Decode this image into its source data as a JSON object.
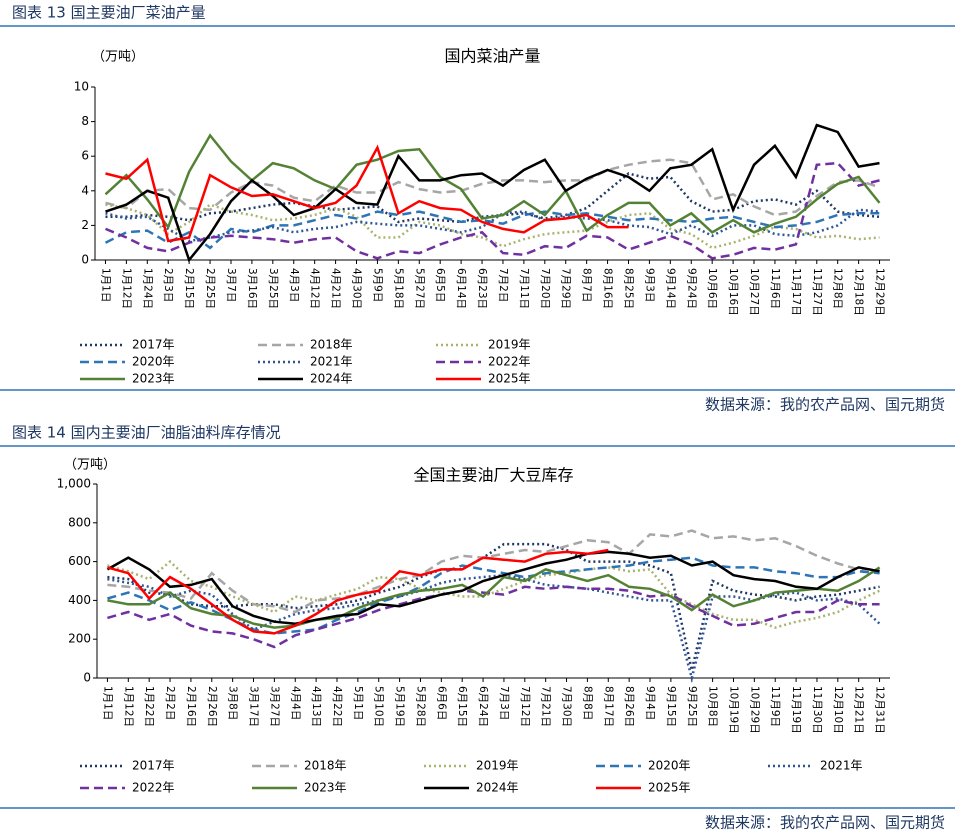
{
  "chart_data": [
    {
      "type": "line",
      "caption": "图表 13 国主要油厂菜油产量",
      "title": "国内菜油产量",
      "unit": "（万吨）",
      "source": "数据来源：我的农产品网、国元期货",
      "categories": [
        "1月1日",
        "1月12日",
        "1月24日",
        "2月3日",
        "2月15日",
        "2月25日",
        "3月7日",
        "3月16日",
        "3月25日",
        "4月3日",
        "4月12日",
        "4月21日",
        "4月30日",
        "5月9日",
        "5月18日",
        "5月27日",
        "6月5日",
        "6月14日",
        "6月23日",
        "7月2日",
        "7月11日",
        "7月20日",
        "7月29日",
        "8月7日",
        "8月16日",
        "8月25日",
        "9月3日",
        "9月14日",
        "9月24日",
        "10月6日",
        "10月16日",
        "10月27日",
        "11月6日",
        "11月17日",
        "11月27日",
        "12月8日",
        "12月18日",
        "12月29日"
      ],
      "ylim": [
        0,
        10
      ],
      "yticks": [
        0,
        2,
        4,
        6,
        8,
        10
      ],
      "series": [
        {
          "name": "2017年",
          "color": "#1f3864",
          "style": "dotted",
          "values": [
            2.5,
            2.5,
            2.6,
            2.5,
            2.3,
            2.7,
            2.8,
            3.0,
            3.2,
            3.3,
            3.1,
            2.9,
            3.0,
            3.1,
            2.2,
            2.4,
            2.3,
            2.2,
            2.5,
            2.6,
            2.7,
            2.4,
            2.6,
            3.0,
            4.0,
            5.0,
            4.7,
            4.8,
            3.4,
            2.8,
            2.9,
            3.4,
            3.5,
            3.2,
            4.0,
            2.8,
            2.6,
            2.5
          ]
        },
        {
          "name": "2018年",
          "color": "#a6a6a6",
          "style": "dashed",
          "values": [
            3.3,
            3.0,
            4.0,
            4.1,
            3.0,
            2.9,
            3.9,
            4.5,
            4.3,
            3.6,
            3.4,
            4.3,
            3.9,
            3.9,
            4.5,
            4.1,
            3.9,
            4.0,
            4.4,
            4.6,
            4.6,
            4.5,
            4.6,
            4.6,
            5.2,
            5.5,
            5.7,
            5.8,
            5.6,
            3.5,
            3.8,
            3.1,
            2.6,
            2.8,
            3.7,
            4.5,
            4.6,
            4.2
          ]
        },
        {
          "name": "2019年",
          "color": "#a9b36e",
          "style": "dotted",
          "values": [
            3.2,
            3.0,
            2.6,
            1.5,
            2.2,
            3.2,
            2.8,
            2.6,
            2.3,
            2.4,
            2.6,
            3.0,
            2.5,
            1.3,
            1.3,
            2.2,
            2.0,
            1.5,
            1.3,
            0.8,
            1.2,
            1.5,
            1.6,
            1.7,
            2.2,
            2.6,
            2.7,
            1.8,
            1.5,
            0.7,
            1.0,
            1.4,
            1.9,
            1.8,
            1.3,
            1.4,
            1.2,
            1.3
          ]
        },
        {
          "name": "2020年",
          "color": "#2e75b6",
          "style": "dashed",
          "values": [
            1.0,
            1.6,
            1.7,
            1.0,
            1.6,
            0.7,
            1.8,
            1.6,
            2.0,
            2.0,
            2.3,
            2.6,
            2.4,
            2.8,
            2.6,
            2.8,
            2.5,
            2.2,
            2.3,
            2.1,
            2.6,
            2.8,
            2.6,
            2.7,
            2.5,
            2.3,
            2.4,
            2.3,
            2.2,
            2.4,
            2.5,
            2.2,
            1.9,
            2.0,
            2.2,
            2.6,
            2.7,
            2.7
          ]
        },
        {
          "name": "2021年",
          "color": "#2f5597",
          "style": "dotted",
          "values": [
            2.7,
            2.4,
            2.5,
            1.8,
            1.1,
            1.3,
            1.6,
            1.7,
            1.9,
            1.6,
            1.8,
            1.9,
            2.2,
            2.1,
            2.0,
            2.0,
            1.8,
            1.6,
            1.9,
            2.7,
            2.8,
            2.3,
            2.5,
            2.4,
            2.3,
            2.0,
            1.9,
            1.5,
            2.0,
            1.4,
            2.0,
            2.0,
            1.5,
            1.4,
            1.6,
            2.0,
            2.9,
            2.8
          ]
        },
        {
          "name": "2022年",
          "color": "#7030a0",
          "style": "dashed",
          "values": [
            1.8,
            1.3,
            0.7,
            0.5,
            1.0,
            1.3,
            1.4,
            1.3,
            1.2,
            1.0,
            1.2,
            1.3,
            0.5,
            0.1,
            0.5,
            0.4,
            0.9,
            1.3,
            1.6,
            0.4,
            0.3,
            0.8,
            0.7,
            1.4,
            1.3,
            0.6,
            1.0,
            1.4,
            0.9,
            0.1,
            0.3,
            0.7,
            0.6,
            0.9,
            5.5,
            5.6,
            4.3,
            4.6
          ]
        },
        {
          "name": "2023年",
          "color": "#548235",
          "style": "solid",
          "values": [
            3.8,
            4.9,
            3.5,
            1.9,
            5.1,
            7.2,
            5.7,
            4.6,
            5.6,
            5.3,
            4.6,
            4.1,
            5.5,
            5.8,
            6.3,
            6.4,
            4.8,
            4.1,
            2.4,
            2.6,
            3.4,
            2.6,
            4.0,
            1.7,
            2.6,
            3.3,
            3.3,
            2.0,
            2.7,
            1.6,
            2.3,
            1.6,
            2.1,
            2.5,
            3.5,
            4.4,
            4.8,
            3.3
          ]
        },
        {
          "name": "2024年",
          "color": "#000000",
          "style": "solid",
          "values": [
            2.8,
            3.2,
            4.0,
            3.6,
            0.0,
            1.5,
            3.4,
            4.6,
            3.7,
            2.6,
            3.0,
            4.1,
            3.3,
            3.2,
            6.0,
            4.6,
            4.6,
            4.9,
            5.0,
            4.3,
            5.2,
            5.8,
            4.0,
            4.7,
            5.2,
            4.8,
            4.0,
            5.3,
            5.5,
            6.4,
            2.9,
            5.5,
            6.6,
            4.8,
            7.8,
            7.4,
            5.4,
            5.6
          ]
        },
        {
          "name": "2025年",
          "color": "#ff0000",
          "style": "solid",
          "values": [
            5.0,
            4.7,
            5.8,
            1.1,
            1.3,
            4.9,
            4.2,
            3.7,
            3.8,
            3.4,
            3.0,
            3.3,
            4.3,
            6.5,
            2.7,
            3.4,
            3.0,
            2.9,
            2.2,
            1.8,
            1.6,
            2.3,
            2.4,
            2.6,
            1.9,
            1.9,
            null,
            null,
            null,
            null,
            null,
            null,
            null,
            null,
            null,
            null,
            null,
            null
          ]
        }
      ]
    },
    {
      "type": "line",
      "caption": "图表 14 国内主要油厂油脂油料库存情况",
      "title": "全国主要油厂大豆库存",
      "unit": "（万吨）",
      "source": "数据来源：我的农产品网、国元期货",
      "categories": [
        "1月1日",
        "1月12日",
        "1月22日",
        "2月2日",
        "2月16日",
        "2月26日",
        "3月8日",
        "3月17日",
        "3月27日",
        "4月4日",
        "4月13日",
        "4月22日",
        "5月1日",
        "5月10日",
        "5月19日",
        "5月28日",
        "6月6日",
        "6月15日",
        "6月24日",
        "7月3日",
        "7月12日",
        "7月21日",
        "7月30日",
        "8月8日",
        "8月17日",
        "8月26日",
        "9月4日",
        "9月15日",
        "9月25日",
        "10月8日",
        "10月19日",
        "10月29日",
        "11月9日",
        "11月19日",
        "11月30日",
        "12月10日",
        "12月21日",
        "12月31日"
      ],
      "ylim": [
        0,
        1000
      ],
      "yticks": [
        0,
        200,
        400,
        600,
        800,
        {
          "value": 1000,
          "label": "1,000"
        }
      ],
      "series": [
        {
          "name": "2017年",
          "color": "#1f3864",
          "style": "dotted",
          "values": [
            520,
            510,
            440,
            430,
            380,
            370,
            370,
            380,
            380,
            360,
            370,
            380,
            400,
            440,
            470,
            520,
            560,
            560,
            620,
            690,
            690,
            690,
            660,
            600,
            600,
            600,
            580,
            540,
            40,
            500,
            450,
            430,
            420,
            400,
            420,
            430,
            450,
            470
          ]
        },
        {
          "name": "2018年",
          "color": "#a6a6a6",
          "style": "dashed",
          "values": [
            480,
            470,
            450,
            440,
            410,
            540,
            450,
            380,
            370,
            340,
            400,
            410,
            430,
            470,
            510,
            530,
            600,
            630,
            620,
            640,
            660,
            650,
            680,
            710,
            700,
            640,
            740,
            730,
            760,
            720,
            730,
            710,
            720,
            680,
            630,
            590,
            560,
            560
          ]
        },
        {
          "name": "2019年",
          "color": "#a9b36e",
          "style": "dotted",
          "values": [
            580,
            550,
            510,
            600,
            500,
            470,
            420,
            380,
            340,
            420,
            400,
            430,
            460,
            520,
            510,
            460,
            440,
            420,
            420,
            460,
            500,
            530,
            540,
            560,
            570,
            550,
            560,
            430,
            380,
            330,
            300,
            300,
            260,
            290,
            310,
            340,
            400,
            450
          ]
        },
        {
          "name": "2020年",
          "color": "#2e75b6",
          "style": "dashed",
          "values": [
            410,
            440,
            400,
            350,
            390,
            350,
            300,
            250,
            230,
            240,
            250,
            300,
            340,
            390,
            420,
            470,
            540,
            580,
            560,
            540,
            520,
            540,
            550,
            560,
            570,
            580,
            600,
            610,
            620,
            580,
            570,
            570,
            550,
            540,
            520,
            520,
            550,
            540
          ]
        },
        {
          "name": "2021年",
          "color": "#2f5597",
          "style": "dotted",
          "values": [
            510,
            490,
            470,
            420,
            450,
            430,
            330,
            250,
            290,
            330,
            350,
            360,
            380,
            400,
            420,
            450,
            490,
            510,
            520,
            530,
            510,
            480,
            470,
            460,
            440,
            420,
            400,
            400,
            0,
            420,
            420,
            400,
            430,
            440,
            400,
            410,
            380,
            280
          ]
        },
        {
          "name": "2022年",
          "color": "#7030a0",
          "style": "dashed",
          "values": [
            310,
            340,
            300,
            330,
            270,
            240,
            230,
            200,
            160,
            220,
            250,
            280,
            310,
            350,
            380,
            410,
            430,
            450,
            440,
            430,
            470,
            460,
            470,
            460,
            460,
            450,
            420,
            430,
            370,
            320,
            270,
            280,
            310,
            340,
            340,
            400,
            380,
            380
          ]
        },
        {
          "name": "2023年",
          "color": "#548235",
          "style": "solid",
          "values": [
            400,
            380,
            380,
            440,
            360,
            330,
            320,
            280,
            260,
            270,
            300,
            310,
            360,
            400,
            430,
            450,
            460,
            480,
            420,
            520,
            500,
            560,
            530,
            500,
            530,
            470,
            460,
            420,
            350,
            430,
            370,
            400,
            440,
            450,
            460,
            450,
            500,
            570
          ]
        },
        {
          "name": "2024年",
          "color": "#000000",
          "style": "solid",
          "values": [
            560,
            620,
            560,
            470,
            480,
            510,
            370,
            320,
            290,
            280,
            300,
            320,
            330,
            380,
            370,
            400,
            430,
            450,
            500,
            530,
            560,
            590,
            610,
            640,
            650,
            640,
            620,
            630,
            580,
            600,
            530,
            510,
            500,
            470,
            460,
            520,
            570,
            550
          ]
        },
        {
          "name": "2025年",
          "color": "#ff0000",
          "style": "solid",
          "values": [
            570,
            540,
            410,
            520,
            460,
            380,
            300,
            240,
            230,
            270,
            330,
            400,
            430,
            450,
            550,
            530,
            560,
            560,
            620,
            610,
            600,
            640,
            650,
            640,
            660,
            null,
            null,
            null,
            null,
            null,
            null,
            null,
            null,
            null,
            null,
            null,
            null,
            null
          ]
        }
      ]
    }
  ]
}
